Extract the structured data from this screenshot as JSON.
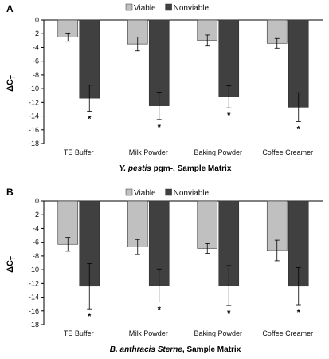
{
  "chart_data": [
    {
      "type": "bar",
      "panel_label": "A",
      "categories": [
        "TE Buffer",
        "Milk Powder",
        "Baking Powder",
        "Coffee Creamer"
      ],
      "series": [
        {
          "name": "Viable",
          "color": "#c0c0c0",
          "values": [
            -2.5,
            -3.5,
            -3.0,
            -3.4
          ],
          "errors": [
            0.6,
            1.0,
            0.8,
            0.7
          ]
        },
        {
          "name": "Nonviable",
          "color": "#404040",
          "values": [
            -11.4,
            -12.5,
            -11.2,
            -12.7
          ],
          "errors": [
            1.9,
            2.0,
            1.6,
            2.1
          ]
        }
      ],
      "significance_marker": "*",
      "ylabel_main": "ΔC",
      "ylabel_sub": "T",
      "xlabel_italic": "Y. pestis",
      "xlabel_rest": " pgm-, Sample Matrix",
      "ylim": [
        -18,
        0
      ],
      "yticks": [
        0,
        -2,
        -4,
        -6,
        -8,
        -10,
        -12,
        -14,
        -16,
        -18
      ],
      "legend_position": "top-center",
      "grid": false
    },
    {
      "type": "bar",
      "panel_label": "B",
      "categories": [
        "TE Buffer",
        "Milk Powder",
        "Baking Powder",
        "Coffee Creamer"
      ],
      "series": [
        {
          "name": "Viable",
          "color": "#c0c0c0",
          "values": [
            -6.3,
            -6.7,
            -6.9,
            -7.2
          ],
          "errors": [
            1.0,
            1.1,
            0.7,
            1.5
          ]
        },
        {
          "name": "Nonviable",
          "color": "#404040",
          "values": [
            -12.4,
            -12.3,
            -12.3,
            -12.4
          ],
          "errors": [
            3.3,
            2.4,
            2.9,
            2.7
          ]
        }
      ],
      "significance_marker": "*",
      "ylabel_main": "ΔC",
      "ylabel_sub": "T",
      "xlabel_italic": "B. anthracis Sterne",
      "xlabel_rest": ", Sample Matrix",
      "ylim": [
        -18,
        0
      ],
      "yticks": [
        0,
        -2,
        -4,
        -6,
        -8,
        -10,
        -12,
        -14,
        -16,
        -18
      ],
      "legend_position": "top-center",
      "grid": false
    }
  ]
}
